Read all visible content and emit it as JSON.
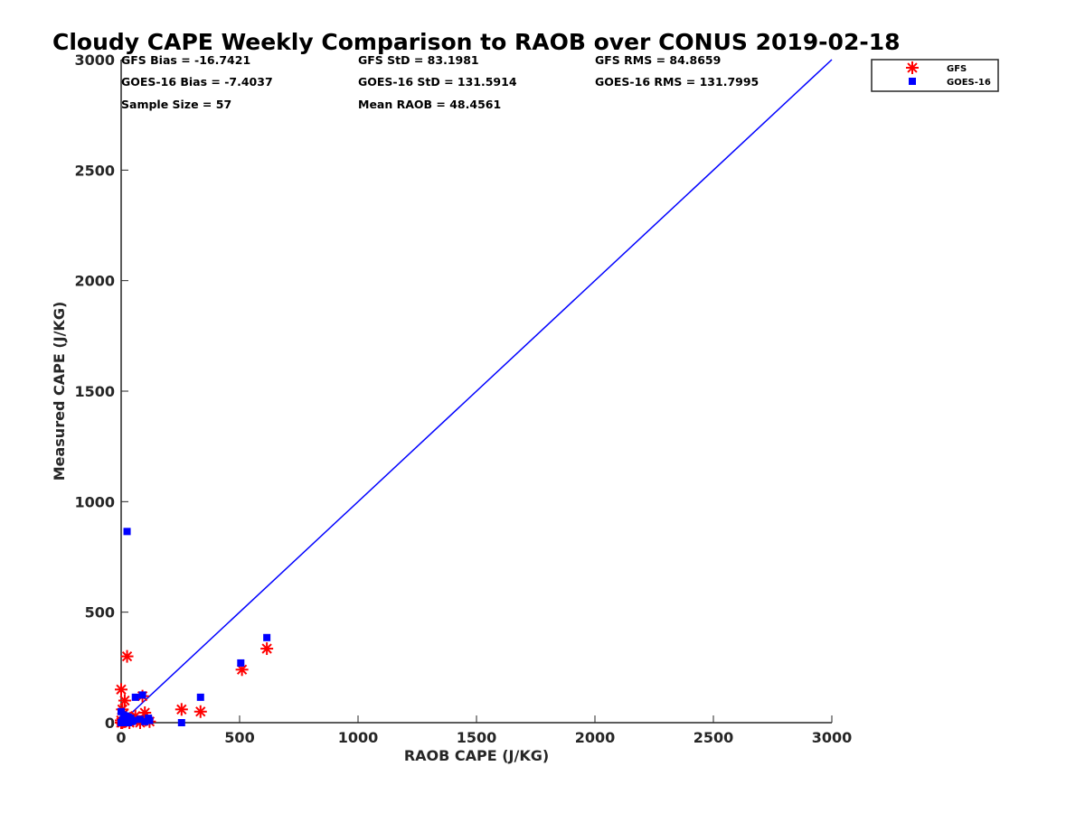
{
  "chart_data": {
    "type": "scatter",
    "title": "Cloudy CAPE Weekly Comparison to RAOB over CONUS 2019-02-18",
    "xlabel": "RAOB CAPE (J/KG)",
    "ylabel": "Measured CAPE (J/KG)",
    "xlim": [
      0,
      3000
    ],
    "ylim": [
      0,
      3000
    ],
    "xticks": [
      "0",
      "500",
      "1000",
      "1500",
      "2000",
      "2500",
      "3000"
    ],
    "yticks": [
      "0",
      "500",
      "1000",
      "1500",
      "2000",
      "2500",
      "3000"
    ],
    "grid": false,
    "legend_position": "top-right, outside plot",
    "stats": [
      {
        "text": "GFS Bias = -16.7421"
      },
      {
        "text": "GFS StD = 83.1981"
      },
      {
        "text": "GFS RMS = 84.8659"
      },
      {
        "text": "GOES-16 Bias = -7.4037"
      },
      {
        "text": "GOES-16 StD = 131.5914"
      },
      {
        "text": "GOES-16 RMS = 131.7995"
      },
      {
        "text": "Sample Size = 57"
      },
      {
        "text": "Mean RAOB = 48.4561"
      }
    ],
    "one_to_one_line": {
      "x": [
        0,
        3000
      ],
      "y": [
        0,
        3000
      ],
      "color": "#0000ff"
    },
    "series": [
      {
        "name": "GFS",
        "marker": "asterisk",
        "color": "#ff0000",
        "points": [
          [
            0,
            150
          ],
          [
            25,
            300
          ],
          [
            15,
            100
          ],
          [
            5,
            60
          ],
          [
            10,
            40
          ],
          [
            20,
            25
          ],
          [
            30,
            15
          ],
          [
            0,
            10
          ],
          [
            5,
            0
          ],
          [
            15,
            5
          ],
          [
            40,
            20
          ],
          [
            50,
            10
          ],
          [
            35,
            0
          ],
          [
            90,
            120
          ],
          [
            100,
            45
          ],
          [
            110,
            15
          ],
          [
            120,
            5
          ],
          [
            80,
            0
          ],
          [
            60,
            30
          ],
          [
            255,
            60
          ],
          [
            335,
            50
          ],
          [
            510,
            240
          ],
          [
            615,
            335
          ],
          [
            0,
            0
          ],
          [
            10,
            5
          ]
        ]
      },
      {
        "name": "GOES-16",
        "marker": "square",
        "color": "#0000ff",
        "points": [
          [
            25,
            865
          ],
          [
            60,
            115
          ],
          [
            90,
            125
          ],
          [
            0,
            50
          ],
          [
            10,
            35
          ],
          [
            20,
            30
          ],
          [
            30,
            25
          ],
          [
            40,
            20
          ],
          [
            5,
            10
          ],
          [
            15,
            5
          ],
          [
            0,
            0
          ],
          [
            30,
            0
          ],
          [
            50,
            10
          ],
          [
            80,
            15
          ],
          [
            100,
            5
          ],
          [
            115,
            20
          ],
          [
            120,
            10
          ],
          [
            255,
            0
          ],
          [
            335,
            115
          ],
          [
            505,
            270
          ],
          [
            615,
            385
          ],
          [
            20,
            15
          ],
          [
            45,
            5
          ]
        ]
      }
    ]
  }
}
